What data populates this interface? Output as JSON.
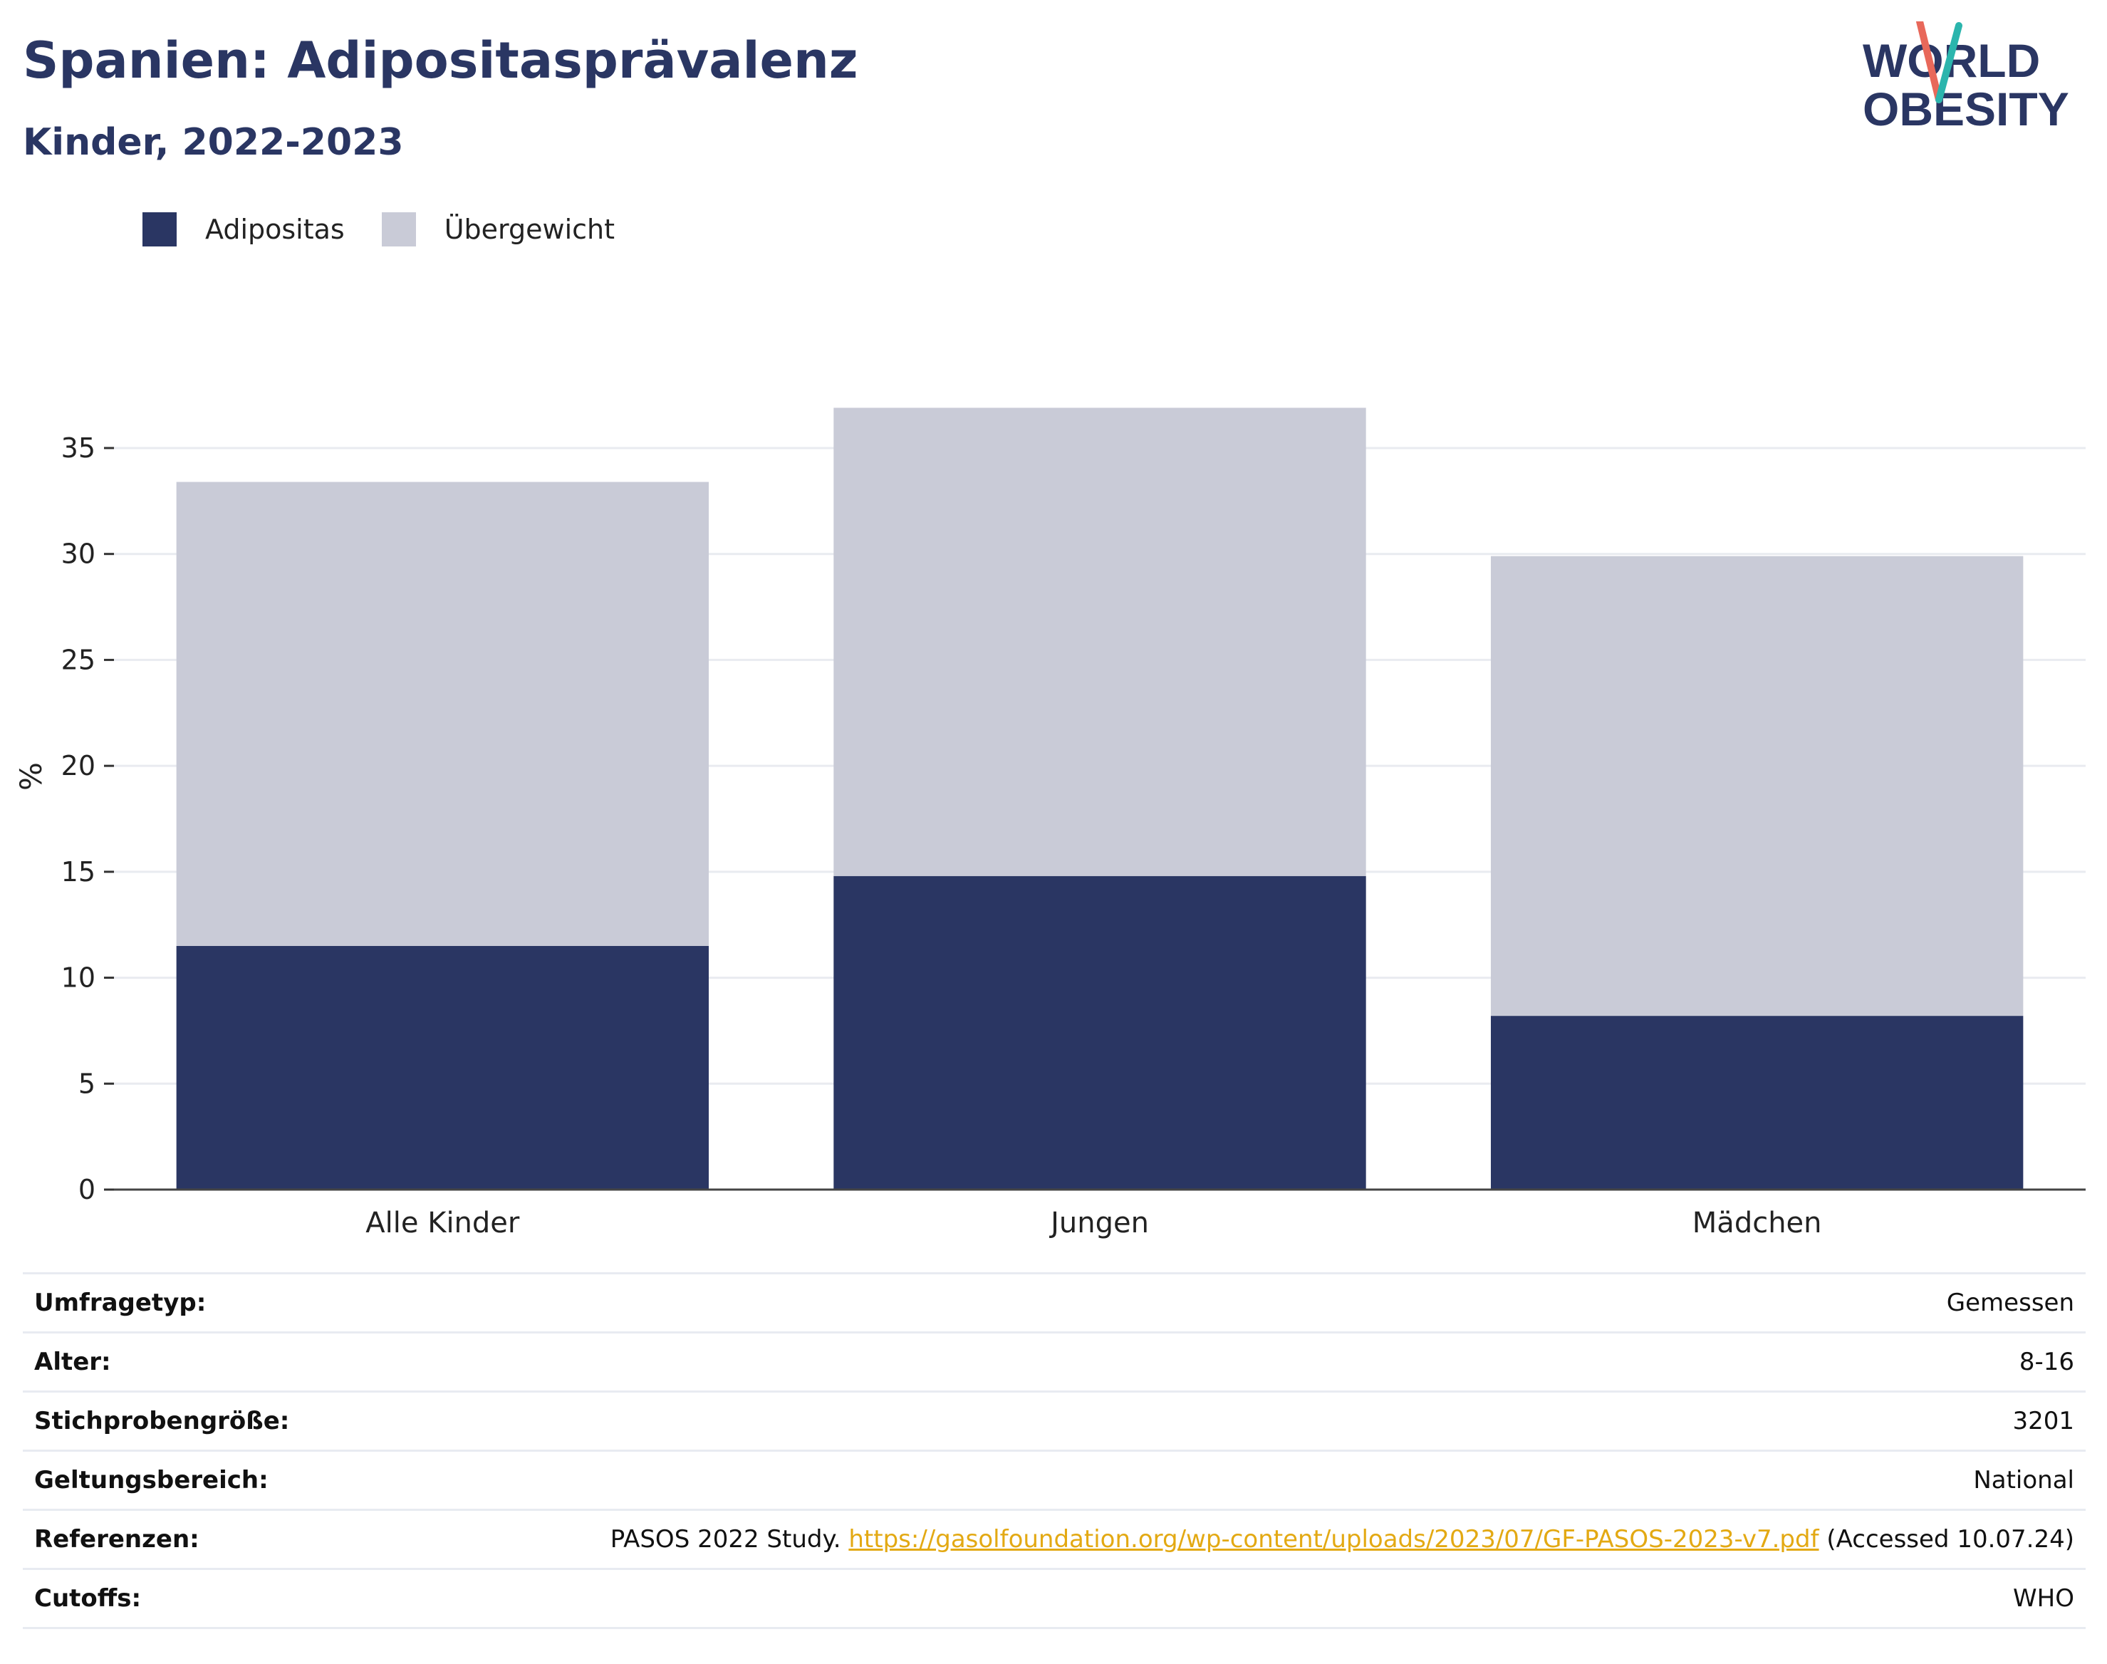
{
  "header": {
    "title": "Spanien: Adipositasprävalenz",
    "subtitle": "Kinder, 2022-2023"
  },
  "logo": {
    "line1": "WORLD",
    "line2": "OBESITY"
  },
  "legend": [
    {
      "label": "Adipositas",
      "color": "#2a3663"
    },
    {
      "label": "Übergewicht",
      "color": "#c9cbd7"
    }
  ],
  "chart_data": {
    "type": "bar",
    "stacked": true,
    "categories": [
      "Alle Kinder",
      "Jungen",
      "Mädchen"
    ],
    "series": [
      {
        "name": "Adipositas",
        "color": "#2a3663",
        "values": [
          11.5,
          14.8,
          8.2
        ]
      },
      {
        "name": "Übergewicht",
        "color": "#c9cbd7",
        "values": [
          21.9,
          22.1,
          21.7
        ]
      }
    ],
    "ylabel": "%",
    "ylim": [
      0,
      39
    ],
    "yticks": [
      0,
      5,
      10,
      15,
      20,
      25,
      30,
      35
    ],
    "grid": true,
    "legend_position": "top-left"
  },
  "meta": {
    "rows": [
      {
        "key": "Umfragetyp:",
        "value": "Gemessen"
      },
      {
        "key": "Alter:",
        "value": "8-16"
      },
      {
        "key": "Stichprobengröße:",
        "value": "3201"
      },
      {
        "key": "Geltungsbereich:",
        "value": "National"
      }
    ],
    "references": {
      "key": "Referenzen:",
      "prefix": "PASOS 2022 Study. ",
      "link": "https://gasolfoundation.org/wp-content/uploads/2023/07/GF-PASOS-2023-v7.pdf",
      "suffix": " (Accessed 10.07.24)"
    },
    "cutoffs": {
      "key": "Cutoffs:",
      "value": "WHO"
    }
  }
}
